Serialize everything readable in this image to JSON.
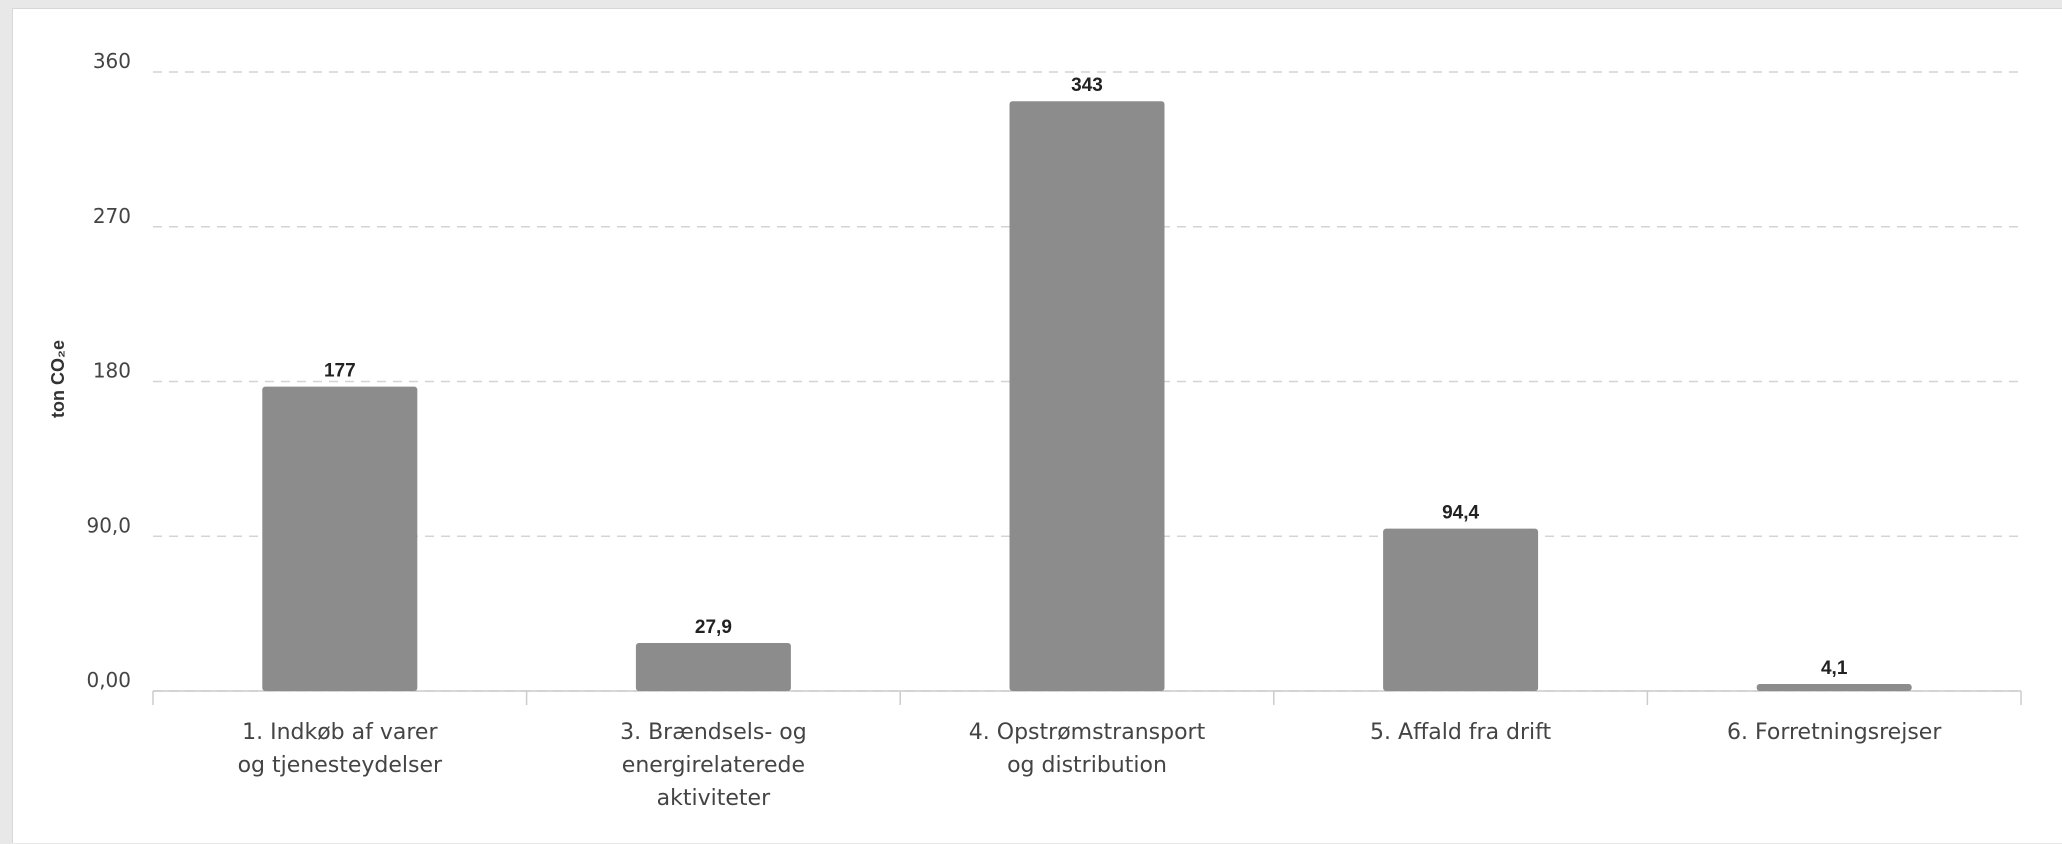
{
  "chart_data": {
    "type": "bar",
    "ylabel": "ton CO₂e",
    "yticks": [
      "0,00",
      "90,0",
      "180",
      "270",
      "360"
    ],
    "ylim": [
      0,
      360
    ],
    "grid": true,
    "categories": [
      [
        "1. Indkøb af varer",
        "og tjenesteydelser"
      ],
      [
        "3. Brændsels- og",
        "energirelaterede",
        "aktiviteter"
      ],
      [
        "4. Opstrømstransport",
        "og distribution"
      ],
      [
        "5. Affald fra drift"
      ],
      [
        "6. Forretningsrejser"
      ]
    ],
    "values": [
      177,
      27.9,
      343,
      94.4,
      4.1
    ],
    "value_labels": [
      "177",
      "27,9",
      "343",
      "94,4",
      "4,1"
    ],
    "bar_color": "#8c8c8c"
  }
}
